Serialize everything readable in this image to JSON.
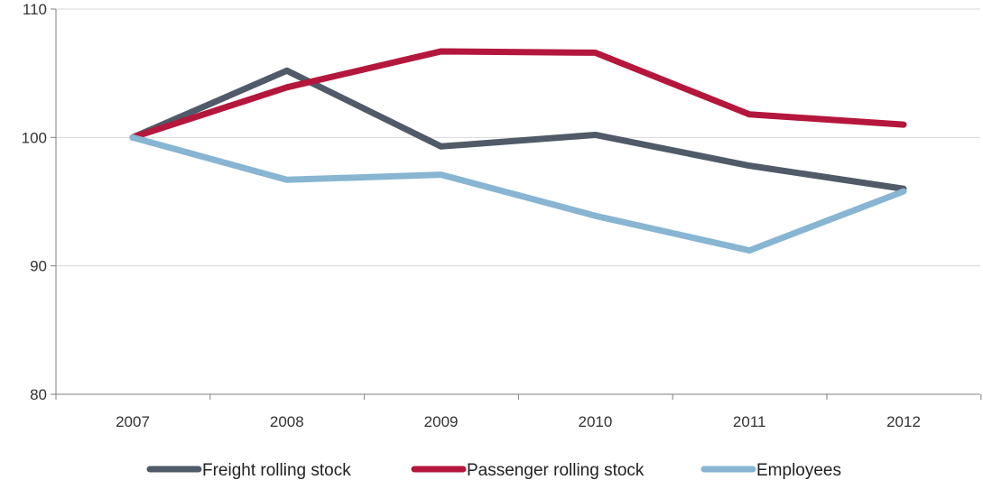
{
  "chart_data": {
    "type": "line",
    "title": "",
    "xlabel": "",
    "ylabel": "",
    "categories": [
      "2007",
      "2008",
      "2009",
      "2010",
      "2011",
      "2012"
    ],
    "ylim": [
      80,
      110
    ],
    "yticks": [
      80,
      90,
      100,
      110
    ],
    "grid": true,
    "legend_position": "bottom",
    "series": [
      {
        "name": "Freight rolling stock",
        "color": "#505a68",
        "values": [
          100,
          105.2,
          99.3,
          100.2,
          97.8,
          96.0
        ]
      },
      {
        "name": "Passenger rolling stock",
        "color": "#b5173c",
        "values": [
          100,
          103.9,
          106.7,
          106.6,
          101.8,
          101.0
        ]
      },
      {
        "name": "Employees",
        "color": "#87b5d2",
        "values": [
          100,
          96.7,
          97.1,
          93.9,
          91.2,
          95.8
        ]
      }
    ]
  }
}
